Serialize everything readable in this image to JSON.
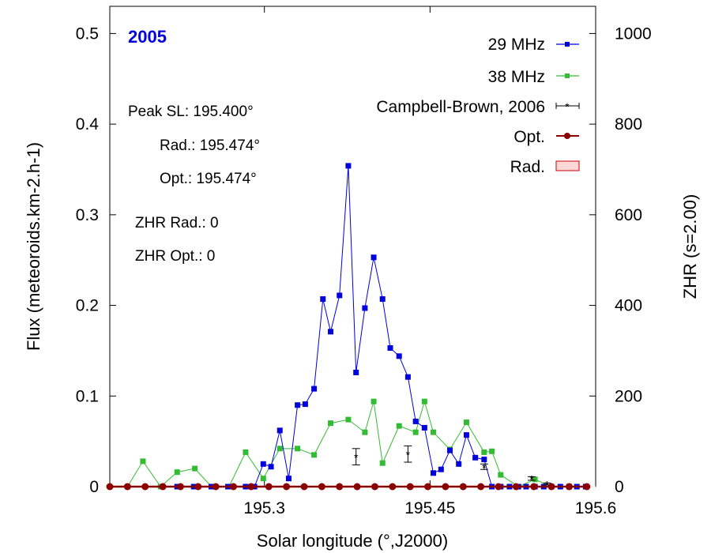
{
  "chart_data": {
    "type": "line",
    "title": "2005",
    "xlabel": "Solar longitude (°,J2000)",
    "ylabel_left": "Flux (meteoroids.km-2.h-1)",
    "ylabel_right": "ZHR (s=2.00)",
    "xlim": [
      195.16,
      195.6
    ],
    "ylim_left": [
      0,
      0.53
    ],
    "ylim_right": [
      0,
      1060
    ],
    "x_ticks": [
      195.3,
      195.45,
      195.6
    ],
    "x_tick_labels": [
      "195.3",
      "195.45",
      "195.6"
    ],
    "y_ticks_left": [
      0,
      0.1,
      0.2,
      0.3,
      0.4,
      0.5
    ],
    "y_tick_labels_left": [
      "0",
      "0.1",
      "0.2",
      "0.3",
      "0.4",
      "0.5"
    ],
    "y_ticks_right": [
      0,
      200,
      400,
      600,
      800,
      1000
    ],
    "y_tick_labels_right": [
      "0",
      "200",
      "400",
      "600",
      "800",
      "1000"
    ],
    "annotations": {
      "peak_sl": "Peak SL: 195.400°",
      "rad": "Rad.: 195.474°",
      "opt": "Opt.: 195.474°",
      "zhr_rad": "ZHR Rad.: 0",
      "zhr_opt": "ZHR Opt.: 0"
    },
    "legend_position": "top-right",
    "series": [
      {
        "name": "29 MHz",
        "axis": "left",
        "color": "#0000dd",
        "x": [
          195.221,
          195.236,
          195.252,
          195.267,
          195.283,
          195.291,
          195.299,
          195.306,
          195.314,
          195.322,
          195.33,
          195.337,
          195.345,
          195.353,
          195.36,
          195.368,
          195.376,
          195.383,
          195.391,
          195.399,
          195.407,
          195.414,
          195.422,
          195.43,
          195.437,
          195.445,
          195.453,
          195.46,
          195.468,
          195.476,
          195.483,
          195.491,
          195.499,
          195.506,
          195.514,
          195.522,
          195.53,
          195.537,
          195.545,
          195.553,
          195.56,
          195.568,
          195.576,
          195.583,
          195.591
        ],
        "y": [
          0,
          0,
          0,
          0,
          0,
          0,
          0.025,
          0.022,
          0.062,
          0.009,
          0.09,
          0.091,
          0.108,
          0.207,
          0.171,
          0.211,
          0.354,
          0.126,
          0.197,
          0.253,
          0.207,
          0.153,
          0.144,
          0.121,
          0.072,
          0.065,
          0.015,
          0.019,
          0.04,
          0.025,
          0.057,
          0.032,
          0.03,
          0,
          0,
          0,
          0,
          0,
          0,
          0,
          0,
          0,
          0,
          0,
          0
        ]
      },
      {
        "name": "38 MHz",
        "axis": "left",
        "color": "#33bb33",
        "x": [
          195.176,
          195.19,
          195.206,
          195.221,
          195.237,
          195.252,
          195.268,
          195.283,
          195.299,
          195.314,
          195.33,
          195.345,
          195.36,
          195.376,
          195.391,
          195.399,
          195.407,
          195.422,
          195.437,
          195.445,
          195.453,
          195.468,
          195.483,
          195.499,
          195.506,
          195.514,
          195.53,
          195.545,
          195.56,
          195.576,
          195.591
        ],
        "y": [
          0,
          0.028,
          0,
          0.016,
          0.02,
          0,
          0,
          0.038,
          0.009,
          0.042,
          0.042,
          0.035,
          0.07,
          0.074,
          0.06,
          0.094,
          0.026,
          0.067,
          0.06,
          0.094,
          0.06,
          0.041,
          0.071,
          0.038,
          0.039,
          0.013,
          0,
          0.008,
          0,
          0,
          0
        ]
      },
      {
        "name": "Campbell-Brown, 2006",
        "axis": "left",
        "color": "#000000",
        "x": [
          195.383,
          195.43,
          195.499,
          195.542,
          195.556
        ],
        "y": [
          0.033,
          0.036,
          0.022,
          0.009,
          0.003
        ],
        "yerr": [
          0.009,
          0.009,
          0.003,
          0.002,
          0.001
        ]
      },
      {
        "name": "Opt.",
        "axis": "right",
        "color": "#8b0000",
        "x": [
          195.16,
          195.176,
          195.192,
          195.208,
          195.224,
          195.24,
          195.256,
          195.272,
          195.288,
          195.304,
          195.32,
          195.336,
          195.352,
          195.368,
          195.384,
          195.4,
          195.416,
          195.432,
          195.448,
          195.464,
          195.48,
          195.496,
          195.512,
          195.528,
          195.544,
          195.56,
          195.576,
          195.592
        ],
        "y": [
          0,
          0,
          0,
          0,
          0,
          0,
          0,
          0,
          0,
          0,
          0,
          0,
          0,
          0,
          0,
          0,
          0,
          0,
          0,
          0,
          0,
          0,
          0,
          0,
          0,
          0,
          0,
          0
        ]
      },
      {
        "name": "Rad.",
        "axis": "right",
        "color": "#ffd8d8",
        "x": [
          195.16,
          195.6
        ],
        "y": [
          0,
          0
        ]
      }
    ]
  }
}
